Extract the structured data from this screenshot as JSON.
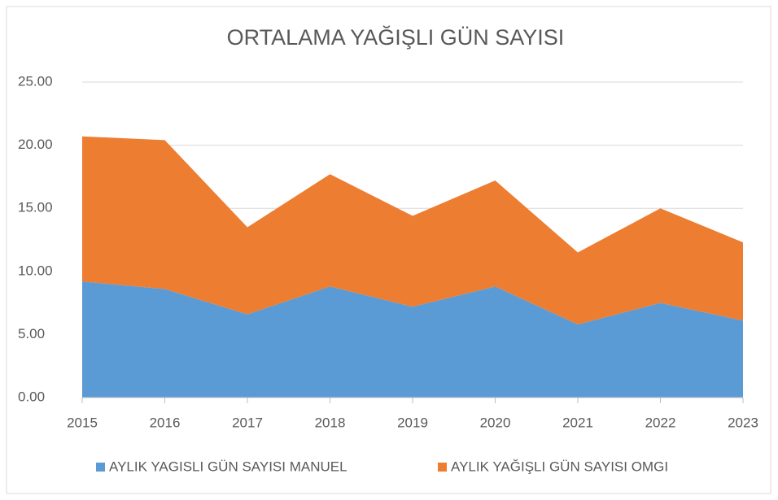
{
  "chart_data": {
    "type": "stacked_area",
    "title": "ORTALAMA YAĞIŞLI GÜN SAYISI",
    "categories": [
      "2015",
      "2016",
      "2017",
      "2018",
      "2019",
      "2020",
      "2021",
      "2022",
      "2023"
    ],
    "series": [
      {
        "name": "AYLIK YAGISLI GÜN SAYISI MANUEL",
        "color": "#5b9bd5",
        "values": [
          9.2,
          8.6,
          6.6,
          8.8,
          7.2,
          8.8,
          5.8,
          7.5,
          6.1
        ]
      },
      {
        "name": "AYLIK YAĞIŞLI GÜN SAYISI OMGI",
        "color": "#ed7d31",
        "values": [
          11.5,
          11.8,
          6.9,
          8.9,
          7.2,
          8.4,
          5.7,
          7.5,
          6.2
        ]
      }
    ],
    "ylim": [
      0,
      25
    ],
    "yticks": [
      {
        "value": 0,
        "label": "0.00"
      },
      {
        "value": 5,
        "label": "5.00"
      },
      {
        "value": 10,
        "label": "10.00"
      },
      {
        "value": 15,
        "label": "15.00"
      },
      {
        "value": 20,
        "label": "20.00"
      },
      {
        "value": 25,
        "label": "25.00"
      }
    ],
    "grid": true,
    "legend": "bottom"
  }
}
